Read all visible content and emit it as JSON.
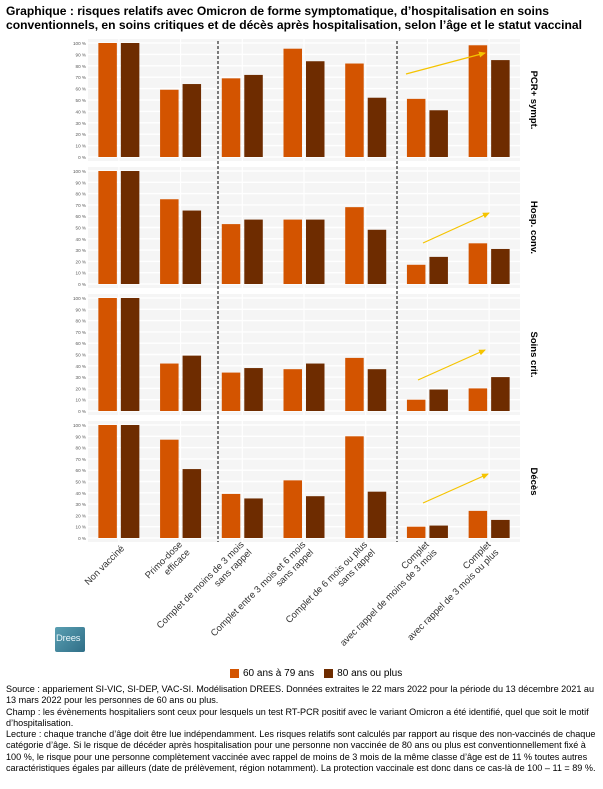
{
  "title": "Graphique : risques relatifs avec Omicron de forme symptomatique, d’hospitalisation en soins conventionnels, en soins critiques et de décès après hospitalisation, selon l’âge et le statut vaccinal",
  "logo_text": "Drees",
  "notes": {
    "source": "Source : appariement SI-VIC, SI-DEP, VAC-SI. Modélisation DREES. Données extraites le 22 mars 2022 pour la période du 13 décembre 2021 au 13 mars 2022 pour les personnes de 60 ans ou plus.",
    "champ": "Champ : les évènements hospitaliers sont ceux pour lesquels un test RT-PCR positif avec le variant Omicron a été identifié, quel que soit le motif d’hospitalisation.",
    "lecture": "Lecture : chaque tranche d’âge doit être lue indépendamment. Les risques relatifs sont calculés par rapport au risque des non-vaccinés de chaque catégorie d’âge. Si le risque de décéder après hospitalisation pour une personne non vaccinée de 80 ans ou plus est conventionnellement fixé à 100 %, le risque pour une personne complètement vaccinée avec rappel de moins de 3 mois de la même classe d’âge est de 11 % toutes autres caractéristiques égales par ailleurs (date de prélèvement, région notamment). La protection vaccinale est donc dans ce cas-là de 100 – 11 = 89 %."
  },
  "colors": {
    "s60": "#d35400",
    "s80": "#6e2c00",
    "arrow": "#f5c400",
    "panel_bg": "#f5f5f5",
    "grid": "#ffffff"
  },
  "chart_data": {
    "type": "bar",
    "categories": [
      "Non vacciné",
      "Primo-dose efficace",
      "Complet de moins de 3 mois sans rappel",
      "Complet entre 3 mois et 6 mois sans rappel",
      "Complet de 6 mois ou plus sans rappel",
      "Complet avec rappel de moins de 3 mois",
      "Complet avec rappel de 3 mois ou plus"
    ],
    "category_lines": [
      [
        "Non vacciné"
      ],
      [
        "Primo-dose",
        "efficace"
      ],
      [
        "Complet de moins de 3 mois",
        "sans rappel"
      ],
      [
        "Complet entre 3 mois et 6 mois",
        "sans rappel"
      ],
      [
        "Complet de 6 mois ou plus",
        "sans rappel"
      ],
      [
        "Complet",
        "avec rappel de moins de 3 mois"
      ],
      [
        "Complet",
        "avec rappel de 3 mois ou plus"
      ]
    ],
    "series_names": [
      "60 ans à 79 ans",
      "80 ans ou plus"
    ],
    "ylim": [
      0,
      100
    ],
    "yticks": [
      "0 %",
      "10 %",
      "20 %",
      "30 %",
      "40 %",
      "50 %",
      "60 %",
      "70 %",
      "80 %",
      "90 %",
      "100 %"
    ],
    "grid": true,
    "legend_position": "bottom",
    "panels": [
      {
        "name": "PCR+ sympt.",
        "s60": [
          100,
          59,
          69,
          95,
          82,
          51,
          98
        ],
        "s80": [
          100,
          64,
          72,
          84,
          52,
          41,
          85
        ]
      },
      {
        "name": "Hosp. conv.",
        "s60": [
          100,
          75,
          53,
          57,
          68,
          17,
          36
        ],
        "s80": [
          100,
          65,
          57,
          57,
          48,
          24,
          31
        ]
      },
      {
        "name": "Soins crit.",
        "s60": [
          100,
          42,
          34,
          37,
          47,
          10,
          20
        ],
        "s80": [
          100,
          49,
          38,
          42,
          37,
          19,
          30
        ]
      },
      {
        "name": "Décès",
        "s60": [
          100,
          87,
          39,
          51,
          90,
          10,
          24
        ],
        "s80": [
          100,
          61,
          35,
          37,
          41,
          11,
          16
        ]
      }
    ]
  }
}
